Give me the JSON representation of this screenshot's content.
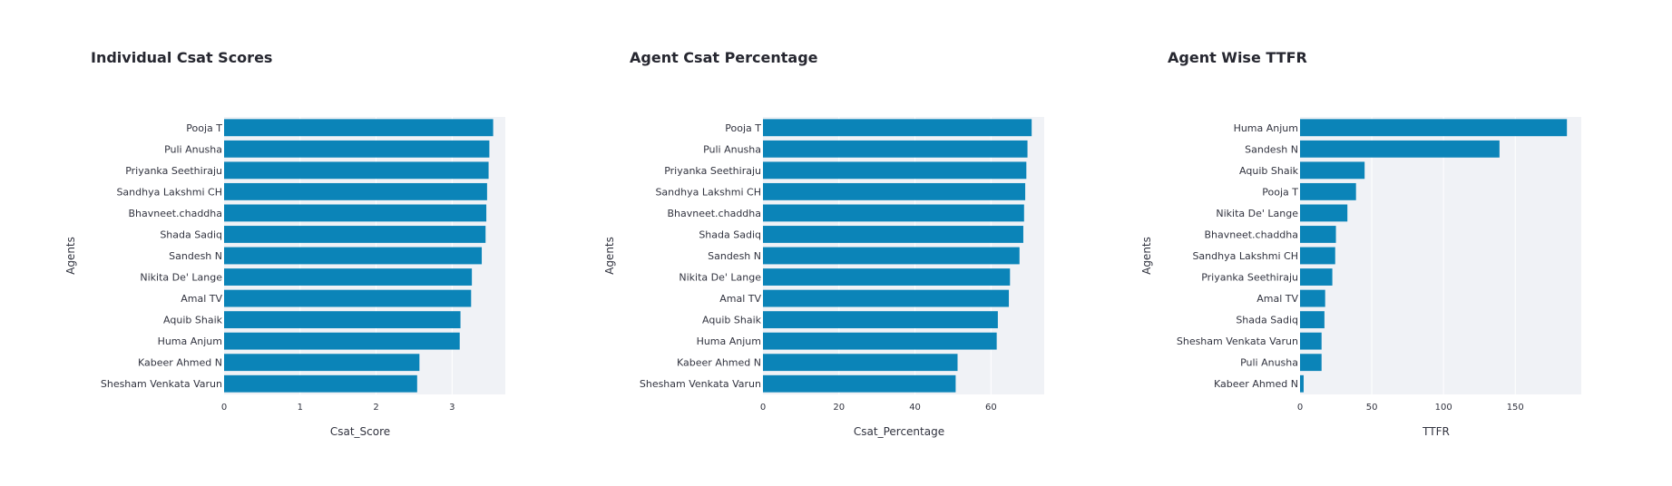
{
  "chart_data": [
    {
      "type": "bar",
      "orientation": "horizontal",
      "title": "Individual Csat Scores",
      "xlabel": "Csat_Score",
      "ylabel": "Agents",
      "xlim": [
        0,
        3.7
      ],
      "xticks": [
        0,
        1,
        2,
        3
      ],
      "grid": true,
      "bar_color": "#0b84b8",
      "categories": [
        "Pooja T",
        "Puli Anusha",
        "Priyanka Seethiraju",
        "Sandhya Lakshmi CH",
        "Bhavneet.chaddha",
        "Shada Sadiq",
        "Sandesh N",
        "Nikita De' Lange",
        "Amal TV",
        "Aquib Shaik",
        "Huma Anjum",
        "Kabeer Ahmed N",
        "Shesham Venkata Varun"
      ],
      "values": [
        3.54,
        3.49,
        3.48,
        3.46,
        3.45,
        3.44,
        3.39,
        3.26,
        3.25,
        3.11,
        3.1,
        2.57,
        2.54
      ]
    },
    {
      "type": "bar",
      "orientation": "horizontal",
      "title": "Agent Csat Percentage",
      "xlabel": "Csat_Percentage",
      "ylabel": "Agents",
      "xlim": [
        0,
        74
      ],
      "xticks": [
        0,
        20,
        40,
        60
      ],
      "grid": true,
      "bar_color": "#0b84b8",
      "categories": [
        "Pooja T",
        "Puli Anusha",
        "Priyanka Seethiraju",
        "Sandhya Lakshmi CH",
        "Bhavneet.chaddha",
        "Shada Sadiq",
        "Sandesh N",
        "Nikita De' Lange",
        "Amal TV",
        "Aquib Shaik",
        "Huma Anjum",
        "Kabeer Ahmed N",
        "Shesham Venkata Varun"
      ],
      "values": [
        70.7,
        69.6,
        69.3,
        69.0,
        68.7,
        68.5,
        67.5,
        65.0,
        64.7,
        61.8,
        61.5,
        51.2,
        50.7
      ]
    },
    {
      "type": "bar",
      "orientation": "horizontal",
      "title": "Agent Wise TTFR",
      "xlabel": "TTFR",
      "ylabel": "Agents",
      "xlim": [
        0,
        196
      ],
      "xticks": [
        0,
        50,
        100,
        150
      ],
      "grid": true,
      "bar_color": "#0b84b8",
      "categories": [
        "Huma Anjum",
        "Sandesh N",
        "Aquib Shaik",
        "Pooja T",
        "Nikita De' Lange",
        "Bhavneet.chaddha",
        "Sandhya Lakshmi CH",
        "Priyanka Seethiraju",
        "Amal TV",
        "Shada Sadiq",
        "Shesham Venkata Varun",
        "Puli Anusha",
        "Kabeer Ahmed N"
      ],
      "values": [
        186,
        139,
        45,
        39,
        33,
        25,
        24.5,
        22.5,
        17.5,
        17,
        15,
        15,
        2.5
      ]
    }
  ]
}
